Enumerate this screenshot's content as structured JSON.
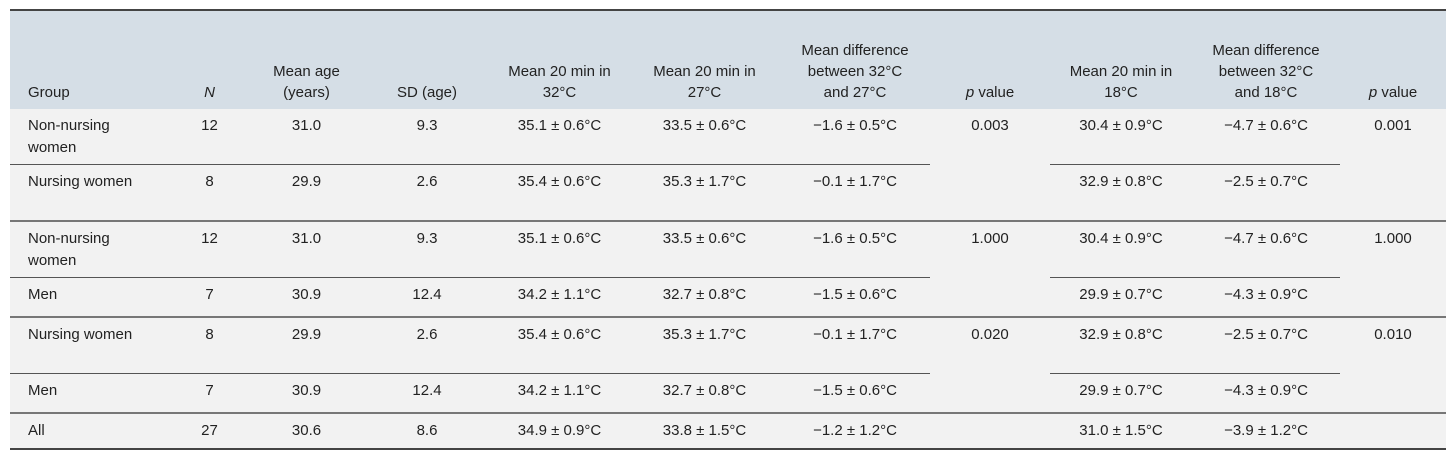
{
  "table": {
    "headers": [
      {
        "text": "Group"
      },
      {
        "em": "N"
      },
      {
        "text": "Mean age (years)"
      },
      {
        "text": "SD (age)"
      },
      {
        "text": "Mean 20 min in 32°C"
      },
      {
        "text": "Mean 20 min in 27°C"
      },
      {
        "text": "Mean difference between 32°C and 27°C"
      },
      {
        "em": "p",
        "text": "value"
      },
      {
        "text": "Mean 20 min in 18°C"
      },
      {
        "text": "Mean difference between 32°C and 18°C"
      },
      {
        "em": "p",
        "text": "value"
      }
    ],
    "rows": [
      [
        "Non-nursing women",
        "12",
        "31.0",
        "9.3",
        "35.1 ± 0.6°C",
        "33.5 ± 0.6°C",
        "−1.6 ± 0.5°C",
        "0.003",
        "30.4 ± 0.9°C",
        "−4.7 ± 0.6°C",
        "0.001"
      ],
      [
        "Nursing women",
        "8",
        "29.9",
        "2.6",
        "35.4 ± 0.6°C",
        "35.3 ± 1.7°C",
        "−0.1 ± 1.7°C",
        null,
        "32.9 ± 0.8°C",
        "−2.5 ± 0.7°C",
        null
      ],
      [
        "Non-nursing women",
        "12",
        "31.0",
        "9.3",
        "35.1 ± 0.6°C",
        "33.5 ± 0.6°C",
        "−1.6 ± 0.5°C",
        "1.000",
        "30.4 ± 0.9°C",
        "−4.7 ± 0.6°C",
        "1.000"
      ],
      [
        "Men",
        "7",
        "30.9",
        "12.4",
        "34.2 ± 1.1°C",
        "32.7 ± 0.8°C",
        "−1.5 ± 0.6°C",
        null,
        "29.9 ± 0.7°C",
        "−4.3 ± 0.9°C",
        null
      ],
      [
        "Nursing women",
        "8",
        "29.9",
        "2.6",
        "35.4 ± 0.6°C",
        "35.3 ± 1.7°C",
        "−0.1 ± 1.7°C",
        "0.020",
        "32.9 ± 0.8°C",
        "−2.5 ± 0.7°C",
        "0.010"
      ],
      [
        "Men",
        "7",
        "30.9",
        "12.4",
        "34.2 ± 1.1°C",
        "32.7 ± 0.8°C",
        "−1.5 ± 0.6°C",
        null,
        "29.9 ± 0.7°C",
        "−4.3 ± 0.9°C",
        null
      ],
      [
        "All",
        "27",
        "30.6",
        "8.6",
        "34.9 ± 0.9°C",
        "33.8 ± 1.5°C",
        "−1.2 ± 1.2°C",
        null,
        "31.0 ± 1.5°C",
        "−3.9 ± 1.2°C",
        null
      ]
    ]
  }
}
